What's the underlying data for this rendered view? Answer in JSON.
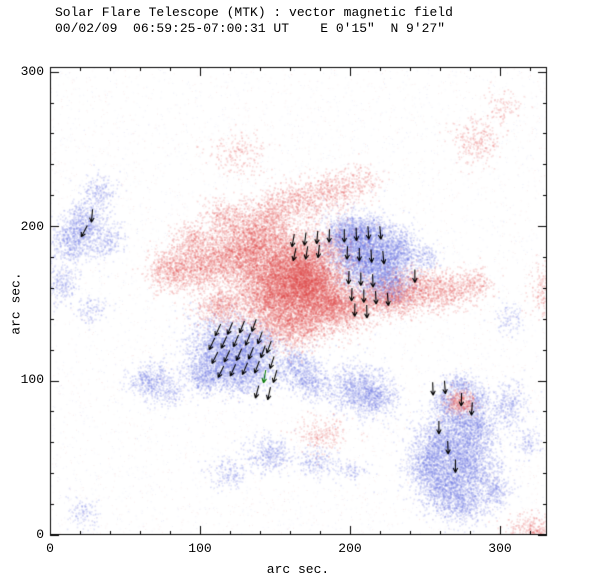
{
  "chart_data": {
    "type": "heatmap",
    "title": "Solar Flare Telescope (MTK) : vector magnetic field",
    "subtitle": "00/02/09  06:59:25-07:00:31 UT    E 0'15\"  N 9'27\"",
    "xlabel": "arc sec.",
    "ylabel": "arc sec.",
    "xlim": [
      0,
      331
    ],
    "ylim": [
      0,
      303
    ],
    "xticks": [
      0,
      100,
      200,
      300
    ],
    "yticks": [
      0,
      100,
      200,
      300
    ],
    "minor_tick_step": 20,
    "grid": false,
    "colors": {
      "positive_polarity": "#e14646",
      "negative_polarity": "#5f69e1",
      "vector": "#000000",
      "vector_special": "#0a7a0a",
      "frame": "#000000",
      "background": "#ffffff"
    },
    "legend": "red = positive magnetic polarity, blue = negative magnetic polarity, arrows = transverse field vectors",
    "blob_format": "[x_arcsec, y_arcsec, sigma_x, sigma_y, intensity_0to1, polarity(+1 red / -1 blue)]",
    "blobs": [
      [
        22,
        200,
        7,
        8,
        0.5,
        -1
      ],
      [
        12,
        188,
        6,
        6,
        0.35,
        -1
      ],
      [
        8,
        163,
        5,
        6,
        0.3,
        -1
      ],
      [
        27,
        146,
        5,
        5,
        0.18,
        -1
      ],
      [
        32,
        222,
        6,
        6,
        0.25,
        -1
      ],
      [
        38,
        190,
        6,
        6,
        0.22,
        -1
      ],
      [
        205,
        185,
        11,
        11,
        0.7,
        -1
      ],
      [
        220,
        172,
        10,
        9,
        0.65,
        -1
      ],
      [
        232,
        186,
        7,
        7,
        0.45,
        -1
      ],
      [
        196,
        196,
        7,
        6,
        0.45,
        -1
      ],
      [
        212,
        197,
        7,
        5,
        0.4,
        -1
      ],
      [
        228,
        160,
        7,
        5,
        0.35,
        -1
      ],
      [
        251,
        180,
        5,
        5,
        0.25,
        -1
      ],
      [
        115,
        120,
        12,
        11,
        0.65,
        -1
      ],
      [
        130,
        108,
        10,
        8,
        0.55,
        -1
      ],
      [
        103,
        103,
        7,
        6,
        0.4,
        -1
      ],
      [
        138,
        125,
        7,
        6,
        0.4,
        -1
      ],
      [
        162,
        110,
        8,
        6,
        0.4,
        -1
      ],
      [
        174,
        100,
        7,
        6,
        0.35,
        -1
      ],
      [
        205,
        95,
        10,
        8,
        0.45,
        -1
      ],
      [
        218,
        88,
        7,
        6,
        0.35,
        -1
      ],
      [
        262,
        60,
        10,
        9,
        0.55,
        -1
      ],
      [
        278,
        45,
        10,
        9,
        0.55,
        -1
      ],
      [
        262,
        30,
        9,
        8,
        0.5,
        -1
      ],
      [
        283,
        68,
        8,
        7,
        0.45,
        -1
      ],
      [
        275,
        20,
        8,
        6,
        0.4,
        -1
      ],
      [
        250,
        45,
        7,
        7,
        0.45,
        -1
      ],
      [
        295,
        30,
        6,
        6,
        0.3,
        -1
      ],
      [
        262,
        86,
        4,
        5,
        0.45,
        -1
      ],
      [
        284,
        86,
        4,
        5,
        0.45,
        -1
      ],
      [
        273,
        97,
        6,
        4,
        0.45,
        -1
      ],
      [
        273,
        76,
        6,
        4,
        0.4,
        -1
      ],
      [
        305,
        84,
        6,
        7,
        0.3,
        -1
      ],
      [
        318,
        60,
        5,
        5,
        0.18,
        -1
      ],
      [
        67,
        100,
        7,
        6,
        0.45,
        -1
      ],
      [
        80,
        91,
        5,
        4,
        0.2,
        -1
      ],
      [
        145,
        53,
        8,
        6,
        0.3,
        -1
      ],
      [
        118,
        40,
        7,
        5,
        0.2,
        -1
      ],
      [
        176,
        47,
        7,
        5,
        0.22,
        -1
      ],
      [
        200,
        42,
        6,
        4,
        0.16,
        -1
      ],
      [
        306,
        140,
        5,
        5,
        0.16,
        -1
      ],
      [
        22,
        15,
        6,
        5,
        0.15,
        -1
      ],
      [
        165,
        175,
        16,
        12,
        0.8,
        1
      ],
      [
        150,
        157,
        14,
        11,
        0.75,
        1
      ],
      [
        127,
        182,
        13,
        10,
        0.55,
        1
      ],
      [
        100,
        176,
        11,
        8,
        0.45,
        1
      ],
      [
        79,
        172,
        8,
        7,
        0.35,
        1
      ],
      [
        183,
        150,
        10,
        9,
        0.65,
        1
      ],
      [
        140,
        196,
        10,
        7,
        0.4,
        1
      ],
      [
        117,
        206,
        8,
        6,
        0.3,
        1
      ],
      [
        160,
        136,
        12,
        8,
        0.5,
        1
      ],
      [
        172,
        162,
        10,
        9,
        0.7,
        1
      ],
      [
        115,
        148,
        10,
        6,
        0.35,
        1
      ],
      [
        95,
        192,
        7,
        5,
        0.25,
        1
      ],
      [
        146,
        209,
        8,
        6,
        0.28,
        1
      ],
      [
        166,
        217,
        11,
        7,
        0.26,
        1
      ],
      [
        190,
        223,
        9,
        6,
        0.22,
        1
      ],
      [
        205,
        230,
        7,
        5,
        0.18,
        1
      ],
      [
        200,
        148,
        10,
        7,
        0.45,
        1
      ],
      [
        218,
        155,
        8,
        5,
        0.3,
        1
      ],
      [
        228,
        152,
        8,
        6,
        0.3,
        1
      ],
      [
        240,
        160,
        10,
        7,
        0.4,
        1
      ],
      [
        262,
        158,
        10,
        6,
        0.35,
        1
      ],
      [
        281,
        163,
        7,
        5,
        0.25,
        1
      ],
      [
        273,
        86,
        5,
        4,
        0.8,
        1
      ],
      [
        283,
        255,
        8,
        7,
        0.18,
        1
      ],
      [
        300,
        278,
        6,
        5,
        0.13,
        1
      ],
      [
        322,
        4,
        9,
        5,
        0.3,
        1
      ],
      [
        180,
        66,
        9,
        6,
        0.16,
        1
      ],
      [
        330,
        158,
        6,
        8,
        0.18,
        1
      ],
      [
        125,
        247,
        10,
        7,
        0.11,
        1
      ]
    ],
    "vector_format": "[x_arcsec, y_arcsec, direction_deg_ccw_from_east]",
    "vectors": [
      [
        162,
        191,
        -100
      ],
      [
        170,
        192,
        -97
      ],
      [
        178,
        193,
        -95
      ],
      [
        186,
        194,
        -92
      ],
      [
        163,
        182,
        -102
      ],
      [
        171,
        183,
        -99
      ],
      [
        179,
        184,
        -96
      ],
      [
        196,
        194,
        -90
      ],
      [
        204,
        195,
        -88
      ],
      [
        212,
        196,
        -86
      ],
      [
        220,
        196,
        -85
      ],
      [
        198,
        183,
        -92
      ],
      [
        206,
        182,
        -90
      ],
      [
        214,
        181,
        -87
      ],
      [
        222,
        180,
        -85
      ],
      [
        199,
        167,
        -92
      ],
      [
        207,
        166,
        -90
      ],
      [
        215,
        165,
        -88
      ],
      [
        201,
        156,
        -92
      ],
      [
        209,
        155,
        -90
      ],
      [
        217,
        154,
        -87
      ],
      [
        225,
        153,
        -85
      ],
      [
        203,
        146,
        -91
      ],
      [
        211,
        145,
        -89
      ],
      [
        243,
        168,
        -90
      ],
      [
        112,
        133,
        -115
      ],
      [
        120,
        134,
        -113
      ],
      [
        128,
        135,
        -112
      ],
      [
        136,
        136,
        -110
      ],
      [
        108,
        124,
        -116
      ],
      [
        116,
        125,
        -115
      ],
      [
        124,
        126,
        -113
      ],
      [
        132,
        127,
        -112
      ],
      [
        140,
        128,
        -110
      ],
      [
        110,
        115,
        -117
      ],
      [
        118,
        116,
        -115
      ],
      [
        126,
        117,
        -114
      ],
      [
        134,
        118,
        -112
      ],
      [
        142,
        119,
        -110
      ],
      [
        114,
        106,
        -116
      ],
      [
        122,
        107,
        -114
      ],
      [
        130,
        108,
        -113
      ],
      [
        138,
        109,
        -111
      ],
      [
        146,
        122,
        -110
      ],
      [
        148,
        112,
        -108
      ],
      [
        150,
        103,
        -106
      ],
      [
        138,
        93,
        -105
      ],
      [
        146,
        92,
        -102
      ],
      [
        255,
        95,
        -88
      ],
      [
        263,
        96,
        -86
      ],
      [
        274,
        88,
        -92
      ],
      [
        281,
        82,
        -94
      ],
      [
        259,
        70,
        -90
      ],
      [
        265,
        57,
        -88
      ],
      [
        270,
        45,
        -90
      ],
      [
        28,
        207,
        -95
      ],
      [
        23,
        197,
        -118
      ]
    ],
    "vectors_green": [
      [
        143,
        103,
        -100
      ]
    ]
  }
}
